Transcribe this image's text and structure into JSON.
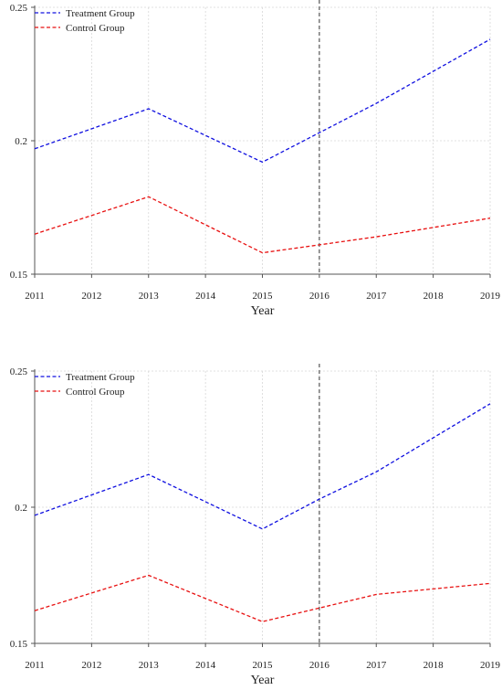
{
  "chart_data": [
    {
      "type": "line",
      "xlabel": "Year",
      "ylabel": "",
      "x": [
        2011,
        2013,
        2015,
        2016,
        2017,
        2019
      ],
      "xticks": [
        "2011",
        "2012",
        "2013",
        "2014",
        "2015",
        "2016",
        "2017",
        "2018",
        "2019"
      ],
      "yticks": [
        "0.15",
        "0.2",
        "0.25"
      ],
      "xlim": [
        2011,
        2019
      ],
      "ylim": [
        0.15,
        0.25
      ],
      "grid": true,
      "legend_position": "top-left",
      "vline": 2016,
      "series": [
        {
          "name": "Treatment Group",
          "color": "#1010e0",
          "values": [
            0.197,
            0.212,
            0.192,
            0.203,
            0.214,
            0.238
          ]
        },
        {
          "name": "Control Group",
          "color": "#e81010",
          "values": [
            0.165,
            0.179,
            0.158,
            0.161,
            0.164,
            0.171
          ]
        }
      ]
    },
    {
      "type": "line",
      "xlabel": "Year",
      "ylabel": "",
      "x": [
        2011,
        2013,
        2015,
        2016,
        2017,
        2019
      ],
      "xticks": [
        "2011",
        "2012",
        "2013",
        "2014",
        "2015",
        "2016",
        "2017",
        "2018",
        "2019"
      ],
      "yticks": [
        "0.15",
        "0.2",
        "0.25"
      ],
      "xlim": [
        2011,
        2019
      ],
      "ylim": [
        0.15,
        0.25
      ],
      "grid": true,
      "legend_position": "top-left",
      "vline": 2016,
      "series": [
        {
          "name": "Treatment Group",
          "color": "#1010e0",
          "values": [
            0.197,
            0.212,
            0.192,
            0.203,
            0.213,
            0.238
          ]
        },
        {
          "name": "Control Group",
          "color": "#e81010",
          "values": [
            0.162,
            0.175,
            0.158,
            0.163,
            0.168,
            0.172
          ]
        }
      ]
    }
  ]
}
